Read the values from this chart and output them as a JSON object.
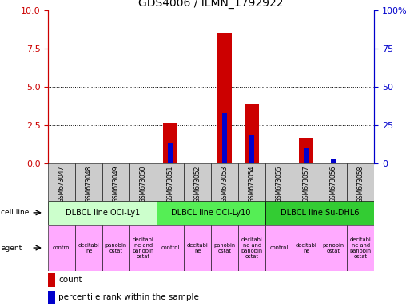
{
  "title": "GDS4006 / ILMN_1792922",
  "samples": [
    "GSM673047",
    "GSM673048",
    "GSM673049",
    "GSM673050",
    "GSM673051",
    "GSM673052",
    "GSM673053",
    "GSM673054",
    "GSM673055",
    "GSM673057",
    "GSM673056",
    "GSM673058"
  ],
  "count_values": [
    0,
    0,
    0,
    0,
    2.7,
    0,
    8.5,
    3.9,
    0,
    1.7,
    0,
    0
  ],
  "percentile_values": [
    0,
    0,
    0,
    0,
    14,
    0,
    33,
    19,
    0,
    10,
    3,
    0
  ],
  "ylim_left": [
    0,
    10
  ],
  "ylim_right": [
    0,
    100
  ],
  "yticks_left": [
    0,
    2.5,
    5,
    7.5,
    10
  ],
  "yticks_right": [
    0,
    25,
    50,
    75,
    100
  ],
  "cell_lines": [
    {
      "label": "DLBCL line OCI-Ly1",
      "start": 0,
      "end": 4,
      "color": "#ccffcc"
    },
    {
      "label": "DLBCL line OCI-Ly10",
      "start": 4,
      "end": 8,
      "color": "#55ee55"
    },
    {
      "label": "DLBCL line Su-DHL6",
      "start": 8,
      "end": 12,
      "color": "#33cc33"
    }
  ],
  "agent_labels": [
    "control",
    "decitabi\nne",
    "panobin\nostat",
    "decitabi\nne and\npanobin\nostat",
    "control",
    "decitabi\nne",
    "panobin\nostat",
    "decitabi\nne and\npanobin\nostat",
    "control",
    "decitabi\nne",
    "panobin\nostat",
    "decitabi\nne and\npanobin\nostat"
  ],
  "agent_color": "#ffaaff",
  "bar_width": 0.55,
  "percentile_bar_width": 0.18,
  "count_color": "#cc0000",
  "percentile_color": "#0000cc",
  "left_axis_color": "#cc0000",
  "right_axis_color": "#0000cc",
  "sample_bg_color": "#cccccc",
  "cell_line_label": "cell line",
  "agent_label": "agent",
  "legend_count": "count",
  "legend_pct": "percentile rank within the sample"
}
